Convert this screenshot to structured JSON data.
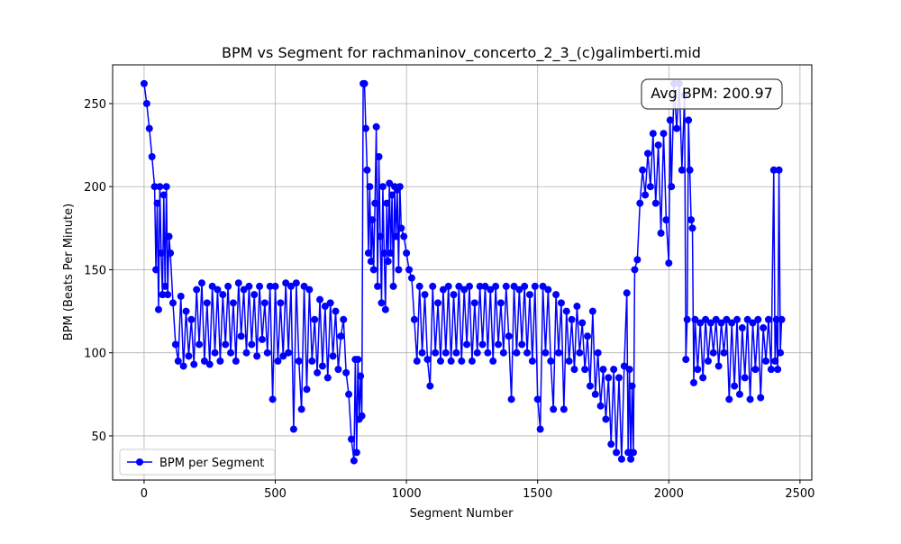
{
  "chart_data": {
    "type": "line",
    "title": "BPM vs Segment for rachmaninov_concerto_2_3_(c)galimberti.mid",
    "xlabel": "Segment Number",
    "ylabel": "BPM (Beats Per Minute)",
    "annotation": "Avg BPM: 200.97",
    "xlim": [
      -120,
      2545
    ],
    "ylim": [
      23.4,
      273.3
    ],
    "xticks": [
      0,
      500,
      1000,
      1500,
      2000,
      2500
    ],
    "yticks": [
      50,
      100,
      150,
      200,
      250
    ],
    "grid": true,
    "legend": "lower left",
    "x": [
      0,
      10,
      20,
      30,
      40,
      45,
      50,
      55,
      60,
      65,
      70,
      75,
      80,
      85,
      90,
      95,
      100,
      110,
      120,
      130,
      140,
      150,
      160,
      170,
      180,
      190,
      200,
      210,
      220,
      230,
      240,
      250,
      260,
      270,
      280,
      290,
      300,
      310,
      320,
      330,
      340,
      350,
      360,
      370,
      380,
      390,
      400,
      410,
      420,
      430,
      440,
      450,
      460,
      470,
      480,
      490,
      500,
      510,
      520,
      530,
      540,
      550,
      560,
      570,
      580,
      590,
      600,
      610,
      620,
      630,
      640,
      650,
      660,
      670,
      680,
      690,
      700,
      710,
      720,
      730,
      740,
      750,
      760,
      770,
      780,
      790,
      800,
      805,
      810,
      815,
      820,
      825,
      830,
      835,
      840,
      845,
      850,
      855,
      860,
      865,
      870,
      875,
      880,
      885,
      890,
      895,
      900,
      905,
      910,
      915,
      920,
      925,
      930,
      935,
      940,
      945,
      950,
      955,
      960,
      965,
      970,
      975,
      980,
      990,
      1000,
      1010,
      1020,
      1030,
      1040,
      1050,
      1060,
      1070,
      1080,
      1090,
      1100,
      1110,
      1120,
      1130,
      1140,
      1150,
      1160,
      1170,
      1180,
      1190,
      1200,
      1210,
      1220,
      1230,
      1240,
      1250,
      1260,
      1270,
      1280,
      1290,
      1300,
      1310,
      1320,
      1330,
      1340,
      1350,
      1360,
      1370,
      1380,
      1390,
      1400,
      1410,
      1420,
      1430,
      1440,
      1450,
      1460,
      1470,
      1480,
      1490,
      1500,
      1510,
      1520,
      1530,
      1540,
      1550,
      1560,
      1570,
      1580,
      1590,
      1600,
      1610,
      1620,
      1630,
      1640,
      1650,
      1660,
      1670,
      1680,
      1690,
      1700,
      1710,
      1720,
      1730,
      1740,
      1750,
      1760,
      1770,
      1780,
      1790,
      1800,
      1810,
      1820,
      1830,
      1840,
      1845,
      1850,
      1855,
      1860,
      1865,
      1870,
      1880,
      1890,
      1900,
      1910,
      1920,
      1930,
      1940,
      1950,
      1960,
      1970,
      1980,
      1990,
      2000,
      2005,
      2010,
      2020,
      2030,
      2040,
      2050,
      2060,
      2065,
      2070,
      2075,
      2080,
      2085,
      2090,
      2095,
      2100,
      2110,
      2120,
      2130,
      2140,
      2150,
      2160,
      2170,
      2180,
      2190,
      2200,
      2210,
      2220,
      2230,
      2240,
      2250,
      2260,
      2270,
      2280,
      2290,
      2300,
      2310,
      2320,
      2330,
      2340,
      2350,
      2360,
      2370,
      2380,
      2390,
      2400,
      2405,
      2410,
      2415,
      2420,
      2425,
      2430
    ],
    "series": [
      {
        "name": "BPM per Segment",
        "color": "#0000ff",
        "values": [
          262,
          250,
          235,
          218,
          200,
          150,
          190,
          126,
          200,
          160,
          135,
          195,
          140,
          200,
          135,
          170,
          160,
          130,
          105,
          95,
          134,
          92,
          125,
          98,
          120,
          93,
          138,
          105,
          142,
          95,
          130,
          93,
          140,
          100,
          138,
          95,
          135,
          105,
          140,
          100,
          130,
          95,
          142,
          110,
          138,
          100,
          140,
          105,
          135,
          98,
          140,
          108,
          130,
          100,
          140,
          72,
          140,
          95,
          130,
          98,
          142,
          100,
          140,
          54,
          142,
          95,
          66,
          140,
          78,
          138,
          95,
          120,
          88,
          132,
          92,
          128,
          85,
          130,
          98,
          125,
          90,
          110,
          120,
          88,
          75,
          48,
          35,
          96,
          40,
          96,
          60,
          86,
          62,
          262,
          262,
          235,
          210,
          160,
          200,
          155,
          180,
          150,
          190,
          236,
          140,
          218,
          170,
          130,
          200,
          160,
          126,
          190,
          155,
          202,
          160,
          195,
          140,
          200,
          170,
          198,
          150,
          200,
          175,
          170,
          160,
          150,
          145,
          120,
          95,
          140,
          100,
          135,
          96,
          80,
          140,
          100,
          130,
          95,
          138,
          100,
          140,
          95,
          135,
          100,
          140,
          95,
          138,
          105,
          140,
          95,
          130,
          100,
          140,
          105,
          140,
          100,
          138,
          95,
          140,
          105,
          130,
          100,
          140,
          110,
          72,
          140,
          100,
          138,
          105,
          140,
          100,
          135,
          95,
          140,
          72,
          54,
          140,
          100,
          138,
          95,
          66,
          135,
          100,
          130,
          66,
          125,
          95,
          120,
          90,
          128,
          100,
          118,
          90,
          110,
          80,
          125,
          75,
          100,
          68,
          90,
          60,
          85,
          45,
          90,
          40,
          85,
          36,
          92,
          136,
          40,
          90,
          36,
          80,
          40,
          150,
          156,
          190,
          210,
          195,
          220,
          200,
          232,
          190,
          225,
          172,
          232,
          180,
          154,
          240,
          200,
          262,
          235,
          262,
          210,
          255,
          96,
          120,
          240,
          210,
          180,
          175,
          82,
          120,
          90,
          118,
          85,
          120,
          95,
          118,
          100,
          120,
          92,
          118,
          100,
          120,
          72,
          118,
          80,
          120,
          75,
          115,
          85,
          120,
          72,
          118,
          90,
          120,
          73,
          115,
          95,
          120,
          90,
          210,
          95,
          120,
          90,
          210,
          100,
          120
        ]
      }
    ]
  }
}
